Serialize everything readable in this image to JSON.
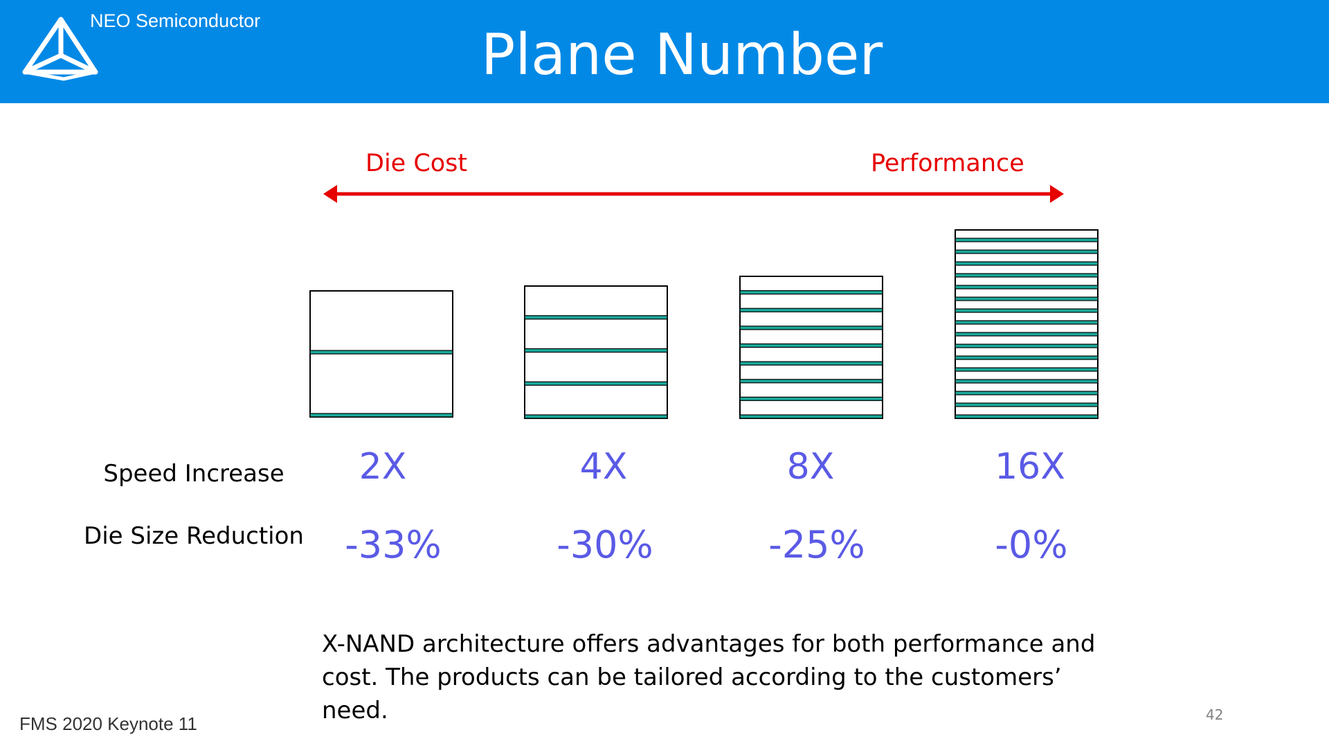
{
  "header": {
    "company": "NEO Semiconductor",
    "title": "Plane Number",
    "logo_icon": "tetrahedron-logo-icon",
    "background_color": "#0289e6"
  },
  "tradeoff": {
    "left_label": "Die Cost",
    "right_label": "Performance",
    "color": "#e60000"
  },
  "rows": {
    "speed_label": "Speed Increase",
    "reduction_label": "Die Size Reduction"
  },
  "configs": [
    {
      "planes": 2,
      "speed": "2X",
      "reduction": "-33%"
    },
    {
      "planes": 4,
      "speed": "4X",
      "reduction": "-30%"
    },
    {
      "planes": 8,
      "speed": "8X",
      "reduction": "-25%"
    },
    {
      "planes": 16,
      "speed": "16X",
      "reduction": "-0%"
    }
  ],
  "summary": {
    "line1": "X-NAND architecture offers advantages for both performance and",
    "line2": "cost. The products can be tailored according to the customers’ need."
  },
  "footer": {
    "event": "FMS 2020 Keynote 11",
    "page_number": "42"
  },
  "colors": {
    "value_text": "#5a5ae6",
    "plane_divider": "#1aa99a"
  }
}
